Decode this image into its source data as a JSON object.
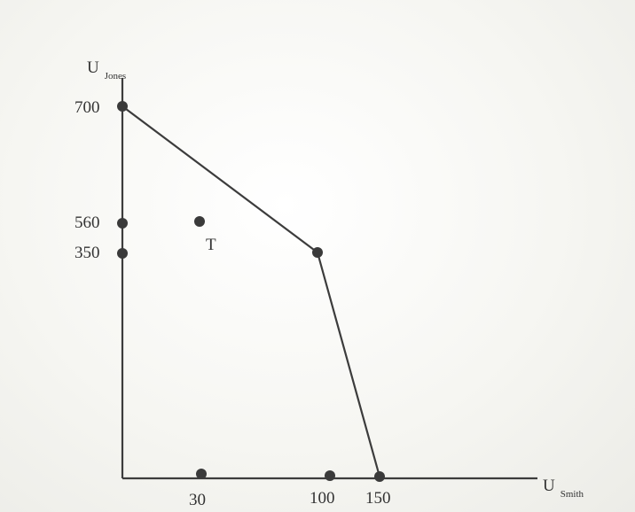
{
  "diagram": {
    "y_axis": {
      "main": "U",
      "sub": "Jones"
    },
    "x_axis": {
      "main": "U",
      "sub": "Smith"
    },
    "y_ticks": [
      "700",
      "560",
      "350"
    ],
    "x_ticks": [
      "30",
      "100",
      "150"
    ],
    "point_label": "T",
    "colors": {
      "ink": "#3a3a3a",
      "background": "#f3f3ef"
    }
  }
}
